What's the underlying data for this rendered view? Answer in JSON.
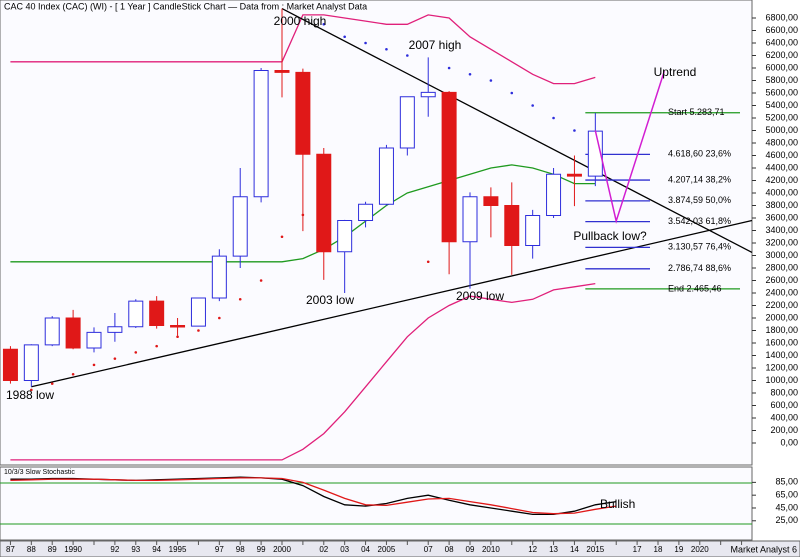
{
  "chart_data": {
    "type": "candlestick",
    "title": "CAC 40 Index (CAC) (WI) -  [ 1 Year ] CandleStick Chart — Data from : Market Analyst Data",
    "footer": "Market Analyst 6",
    "categories": [
      "87",
      "88",
      "89",
      "1990",
      null,
      "92",
      "93",
      "94",
      "1995",
      null,
      "97",
      "98",
      "99",
      "2000",
      null,
      "02",
      "03",
      "04",
      "2005",
      null,
      "07",
      "08",
      "09",
      "2010",
      null,
      "12",
      "13",
      "14",
      "2015",
      null,
      "17",
      "18",
      "19",
      "2020",
      null,
      null
    ],
    "xlim": [
      1986.5,
      2022.5
    ],
    "ylim": [
      -352,
      7088
    ],
    "up_color": "#2e2edc",
    "down_color": "#e01818",
    "open": [
      1500,
      1000,
      1570,
      2000,
      1520,
      1770,
      1860,
      2270,
      1880,
      1870,
      2320,
      2990,
      3940,
      5960,
      5930,
      4620,
      3060,
      3560,
      3820,
      4720,
      5540,
      5610,
      3220,
      3940,
      3800,
      3160,
      3640,
      4300,
      4270,
      null,
      null,
      null,
      null,
      null,
      null,
      null
    ],
    "high": [
      1550,
      1580,
      2030,
      2130,
      1850,
      2080,
      2300,
      2350,
      2000,
      2320,
      3100,
      4400,
      6000,
      6950,
      5990,
      4720,
      3570,
      3860,
      4770,
      5530,
      6170,
      5630,
      4010,
      4090,
      4170,
      3730,
      4400,
      4600,
      5280,
      null,
      null,
      null,
      null,
      null,
      null,
      null
    ],
    "low": [
      950,
      900,
      1550,
      1500,
      1450,
      1620,
      1840,
      1830,
      1720,
      1870,
      2270,
      2800,
      3850,
      5530,
      3390,
      2610,
      2400,
      3450,
      3800,
      4600,
      5220,
      2700,
      2470,
      3290,
      2690,
      2950,
      3600,
      3790,
      4110,
      null,
      null,
      null,
      null,
      null,
      null,
      null
    ],
    "close": [
      1000,
      1570,
      2000,
      1520,
      1770,
      1860,
      2270,
      1880,
      1870,
      2320,
      2990,
      3940,
      5960,
      5930,
      4620,
      3060,
      3560,
      3820,
      4720,
      5540,
      5610,
      3220,
      3940,
      3800,
      3160,
      3640,
      4300,
      4270,
      4990,
      null,
      null,
      null,
      null,
      null,
      null,
      null
    ],
    "bands": [
      {
        "color": "#e0207a",
        "values": [
          6100,
          6100,
          6100,
          6100,
          6100,
          6100,
          6100,
          6100,
          6100,
          6100,
          6100,
          6100,
          6100,
          6100,
          6850,
          6850,
          6800,
          6750,
          6700,
          6700,
          6850,
          6800,
          6500,
          6300,
          6100,
          5900,
          5750,
          5750,
          5850,
          null,
          null,
          null,
          null,
          null,
          null,
          null
        ]
      },
      {
        "color": "#1f9a1f",
        "values": [
          2900,
          2900,
          2900,
          2900,
          2900,
          2900,
          2900,
          2900,
          2900,
          2900,
          2900,
          2900,
          2900,
          2900,
          2950,
          3100,
          3300,
          3550,
          3800,
          4000,
          4100,
          4200,
          4300,
          4400,
          4450,
          4400,
          4300,
          4150,
          4150,
          null,
          null,
          null,
          null,
          null,
          null,
          null
        ]
      },
      {
        "color": "#e0207a",
        "values": [
          -270,
          -270,
          -270,
          -270,
          -270,
          -270,
          -270,
          -270,
          -270,
          -270,
          -270,
          -270,
          -270,
          -270,
          -100,
          150,
          500,
          900,
          1300,
          1700,
          2000,
          2200,
          2350,
          2300,
          2250,
          2300,
          2450,
          2500,
          2550,
          null,
          null,
          null,
          null,
          null,
          null,
          null
        ]
      }
    ],
    "sar": [
      null,
      850,
      950,
      1100,
      1250,
      1350,
      1450,
      1550,
      1700,
      1800,
      2000,
      2300,
      2600,
      3300,
      3650,
      6700,
      6500,
      6400,
      6300,
      6200,
      2900,
      6000,
      5900,
      5800,
      5600,
      5400,
      5200,
      5000,
      null,
      null,
      null,
      null,
      null,
      null,
      null,
      null
    ],
    "sar_above_color": "#2e2edc",
    "sar_below_color": "#e01818",
    "trendlines": [
      {
        "color": "#000000",
        "x": [
          2000,
          2022.5
        ],
        "values": [
          6950,
          3050
        ]
      },
      {
        "color": "#000000",
        "x": [
          1988,
          2022.5
        ],
        "values": [
          900,
          3560
        ]
      }
    ],
    "projection": {
      "color": "#d21ed2",
      "x": [
        2015,
        2016,
        2018.3
      ],
      "values": [
        5000,
        3550,
        5950
      ]
    },
    "fib_color": "#3030d0",
    "fib_end_color": "#1f9a1f",
    "fib_levels": [
      {
        "value": 5283.71,
        "label": "Start 5.283,71"
      },
      {
        "value": 4618.6,
        "label": "4.618,60 23,6%"
      },
      {
        "value": 4207.14,
        "label": "4.207,14 38,2%"
      },
      {
        "value": 3874.59,
        "label": "3.874,59 50,0%"
      },
      {
        "value": 3542.03,
        "label": "3.542,03 61,8%"
      },
      {
        "value": 3130.57,
        "label": "3.130,57 76,4%"
      },
      {
        "value": 2786.74,
        "label": "2.786,74 88,6%"
      },
      {
        "value": 2465.46,
        "label": "End 2.465,46"
      }
    ],
    "annotations": [
      "2000 high",
      "2007 high",
      "2003 low",
      "2009 low",
      "1988 low",
      "Uptrend",
      "Pullback low?"
    ],
    "yticks": [
      {
        "value": 6800,
        "label": "6800,00"
      },
      {
        "value": 6600,
        "label": "6600,00"
      },
      {
        "value": 6400,
        "label": "6400,00"
      },
      {
        "value": 6200,
        "label": "6200,00"
      },
      {
        "value": 6000,
        "label": "6000,00"
      },
      {
        "value": 5800,
        "label": "5800,00"
      },
      {
        "value": 5600,
        "label": "5600,00"
      },
      {
        "value": 5400,
        "label": "5400,00"
      },
      {
        "value": 5200,
        "label": "5200,00"
      },
      {
        "value": 5000,
        "label": "5000,00"
      },
      {
        "value": 4800,
        "label": "4800,00"
      },
      {
        "value": 4600,
        "label": "4600,00"
      },
      {
        "value": 4400,
        "label": "4400,00"
      },
      {
        "value": 4200,
        "label": "4200,00"
      },
      {
        "value": 4000,
        "label": "4000,00"
      },
      {
        "value": 3800,
        "label": "3800,00"
      },
      {
        "value": 3600,
        "label": "3600,00"
      },
      {
        "value": 3400,
        "label": "3400,00"
      },
      {
        "value": 3200,
        "label": "3200,00"
      },
      {
        "value": 3000,
        "label": "3000,00"
      },
      {
        "value": 2800,
        "label": "2800,00"
      },
      {
        "value": 2600,
        "label": "2600,00"
      },
      {
        "value": 2400,
        "label": "2400,00"
      },
      {
        "value": 2200,
        "label": "2200,00"
      },
      {
        "value": 2000,
        "label": "2000,00"
      },
      {
        "value": 1800,
        "label": "1800,00"
      },
      {
        "value": 1600,
        "label": "1600,00"
      },
      {
        "value": 1400,
        "label": "1400,00"
      },
      {
        "value": 1200,
        "label": "1200,00"
      },
      {
        "value": 1000,
        "label": "1000,00"
      },
      {
        "value": 800,
        "label": "800,00"
      },
      {
        "value": 600,
        "label": "600,00"
      },
      {
        "value": 400,
        "label": "400,00"
      },
      {
        "value": 200,
        "label": "200,00"
      },
      {
        "value": 0,
        "label": "0,00"
      }
    ],
    "stochastic": {
      "title": "10/3/3 Slow Stochastic",
      "annotation": "Bullish",
      "ylim": [
        -5,
        109
      ],
      "yticks": [
        {
          "value": 85,
          "label": "85,00"
        },
        {
          "value": 65,
          "label": "65,00"
        },
        {
          "value": 45,
          "label": "45,00"
        },
        {
          "value": 25,
          "label": "25,00"
        }
      ],
      "levels": [
        84,
        20
      ],
      "level_color": "#1f9a1f",
      "series": [
        {
          "color": "#000000",
          "values": [
            90,
            90,
            91,
            91,
            90,
            89,
            88,
            89,
            90,
            91,
            92,
            93,
            92,
            90,
            80,
            63,
            50,
            48,
            52,
            60,
            65,
            57,
            50,
            45,
            40,
            35,
            35,
            40,
            50,
            55,
            null,
            null,
            null,
            null,
            null,
            null
          ]
        },
        {
          "color": "#e01818",
          "values": [
            88,
            89,
            90,
            90,
            90,
            89,
            88,
            88,
            89,
            90,
            91,
            92,
            92,
            91,
            85,
            73,
            60,
            50,
            49,
            54,
            59,
            60,
            55,
            50,
            44,
            38,
            36,
            37,
            43,
            48,
            null,
            null,
            null,
            null,
            null,
            null
          ]
        }
      ]
    }
  }
}
